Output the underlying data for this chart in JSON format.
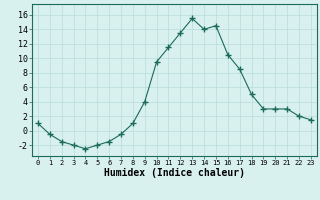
{
  "x": [
    0,
    1,
    2,
    3,
    4,
    5,
    6,
    7,
    8,
    9,
    10,
    11,
    12,
    13,
    14,
    15,
    16,
    17,
    18,
    19,
    20,
    21,
    22,
    23
  ],
  "y": [
    1.0,
    -0.5,
    -1.5,
    -2.0,
    -2.5,
    -2.0,
    -1.5,
    -0.5,
    1.0,
    4.0,
    9.5,
    11.5,
    13.5,
    15.5,
    14.0,
    14.5,
    10.5,
    8.5,
    5.0,
    3.0,
    3.0,
    3.0,
    2.0,
    1.5
  ],
  "line_color": "#1a6b5a",
  "marker": "+",
  "marker_size": 4,
  "background_color": "#d8f0ee",
  "grid_color": "#b8dcd8",
  "xlabel": "Humidex (Indice chaleur)",
  "xlabel_fontsize": 7,
  "xtick_labels": [
    "0",
    "1",
    "2",
    "3",
    "4",
    "5",
    "6",
    "7",
    "8",
    "9",
    "10",
    "11",
    "12",
    "13",
    "14",
    "15",
    "16",
    "17",
    "18",
    "19",
    "20",
    "21",
    "22",
    "23"
  ],
  "ytick_values": [
    -2,
    0,
    2,
    4,
    6,
    8,
    10,
    12,
    14,
    16
  ],
  "ylim": [
    -3.5,
    17.5
  ],
  "xlim": [
    -0.5,
    23.5
  ]
}
